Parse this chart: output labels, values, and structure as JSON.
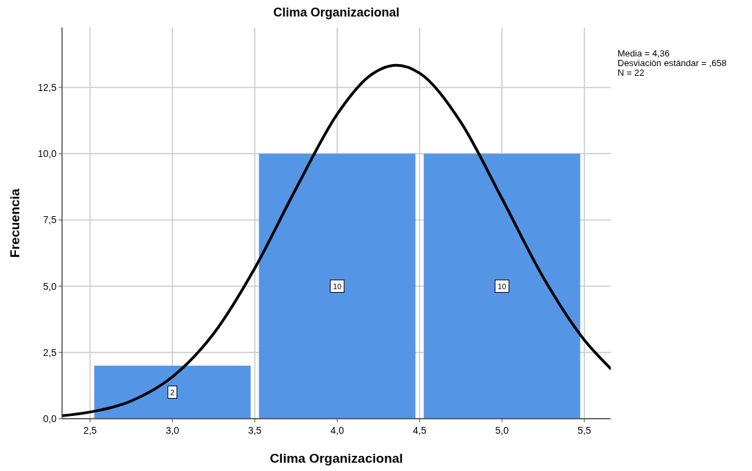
{
  "chart_data": {
    "type": "histogram",
    "title": "Clima Organizacional",
    "xlabel": "Clima Organizacional",
    "ylabel": "Frecuencia",
    "bins": [
      2.5,
      3.5,
      4.5,
      5.5
    ],
    "series": [
      {
        "color": "#5595e5",
        "values": [
          2,
          10,
          10
        ],
        "value_labels": [
          "2",
          "10",
          "10"
        ]
      },
      {
        "type": "line",
        "color": "#000000",
        "x": [
          2.33,
          2.5,
          2.75,
          3.0,
          3.25,
          3.5,
          3.75,
          4.0,
          4.2,
          4.36,
          4.5,
          4.75,
          5.0,
          5.25,
          5.5,
          5.66
        ],
        "values": [
          0.11,
          0.25,
          0.67,
          1.58,
          3.21,
          5.68,
          8.68,
          11.49,
          12.95,
          13.34,
          13.04,
          11.19,
          8.31,
          5.34,
          2.97,
          1.89
        ]
      }
    ],
    "grid": true,
    "marker": "none",
    "line_style": "solid",
    "xlim": [
      2.33,
      5.66
    ],
    "ylim": [
      0,
      14.76
    ],
    "xticks": [
      {
        "value": 2.5,
        "label": "2,5"
      },
      {
        "value": 3,
        "label": "3,0"
      },
      {
        "value": 3.5,
        "label": "3,5"
      },
      {
        "value": 4,
        "label": "4,0"
      },
      {
        "value": 4.5,
        "label": "4,5"
      },
      {
        "value": 5,
        "label": "5,0"
      },
      {
        "value": 5.5,
        "label": "5,5"
      }
    ],
    "yticks": [
      {
        "value": 0,
        "label": "0,0"
      },
      {
        "value": 2.5,
        "label": "2,5"
      },
      {
        "value": 5,
        "label": "5,0"
      },
      {
        "value": 7.5,
        "label": "7,5"
      },
      {
        "value": 10,
        "label": "10,0"
      },
      {
        "value": 12.5,
        "label": "12,5"
      }
    ],
    "annotations": [
      "Media = 4,36",
      "Desviación estándar = ,658",
      "N = 22"
    ]
  }
}
